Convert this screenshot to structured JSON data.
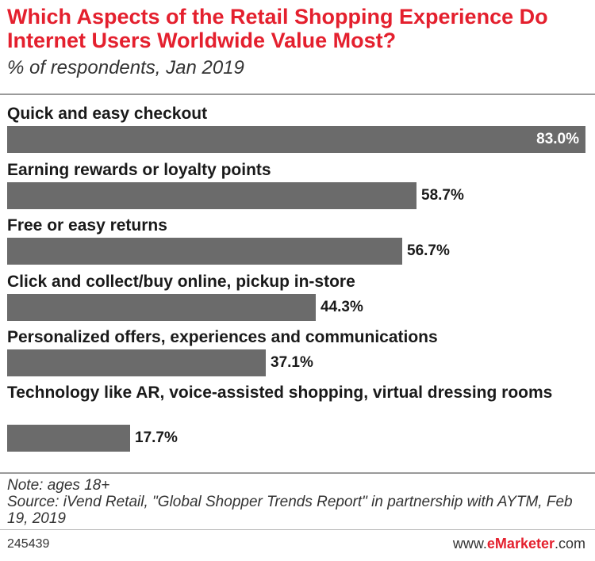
{
  "header": {
    "title": "Which Aspects of the Retail Shopping Experience Do Internet Users Worldwide Value Most?",
    "subtitle": "% of respondents, Jan 2019"
  },
  "chart_data": {
    "type": "bar",
    "orientation": "horizontal",
    "title": "Which Aspects of the Retail Shopping Experience Do Internet Users Worldwide Value Most?",
    "subtitle": "% of respondents, Jan 2019",
    "categories": [
      "Quick and easy checkout",
      "Earning rewards or loyalty points",
      "Free or easy returns",
      "Click and collect/buy online, pickup in-store",
      "Personalized offers, experiences and communications",
      "Technology like AR, voice-assisted shopping, virtual dressing rooms"
    ],
    "values": [
      83.0,
      58.7,
      56.7,
      44.3,
      37.1,
      17.7
    ],
    "value_labels": [
      "83.0%",
      "58.7%",
      "56.7%",
      "44.3%",
      "37.1%",
      "17.7%"
    ],
    "xlim": [
      0,
      83.0
    ],
    "bar_color": "#6b6b6b",
    "grid": false
  },
  "footer": {
    "note": "Note: ages 18+",
    "source": "Source: iVend Retail, \"Global Shopper Trends Report\" in partnership with AYTM, Feb 19, 2019",
    "chart_id": "245439",
    "brand_prefix": "www.",
    "brand_name": "eMarketer",
    "brand_suffix": ".com"
  },
  "colors": {
    "title": "#e4202e",
    "bar": "#6b6b6b"
  }
}
